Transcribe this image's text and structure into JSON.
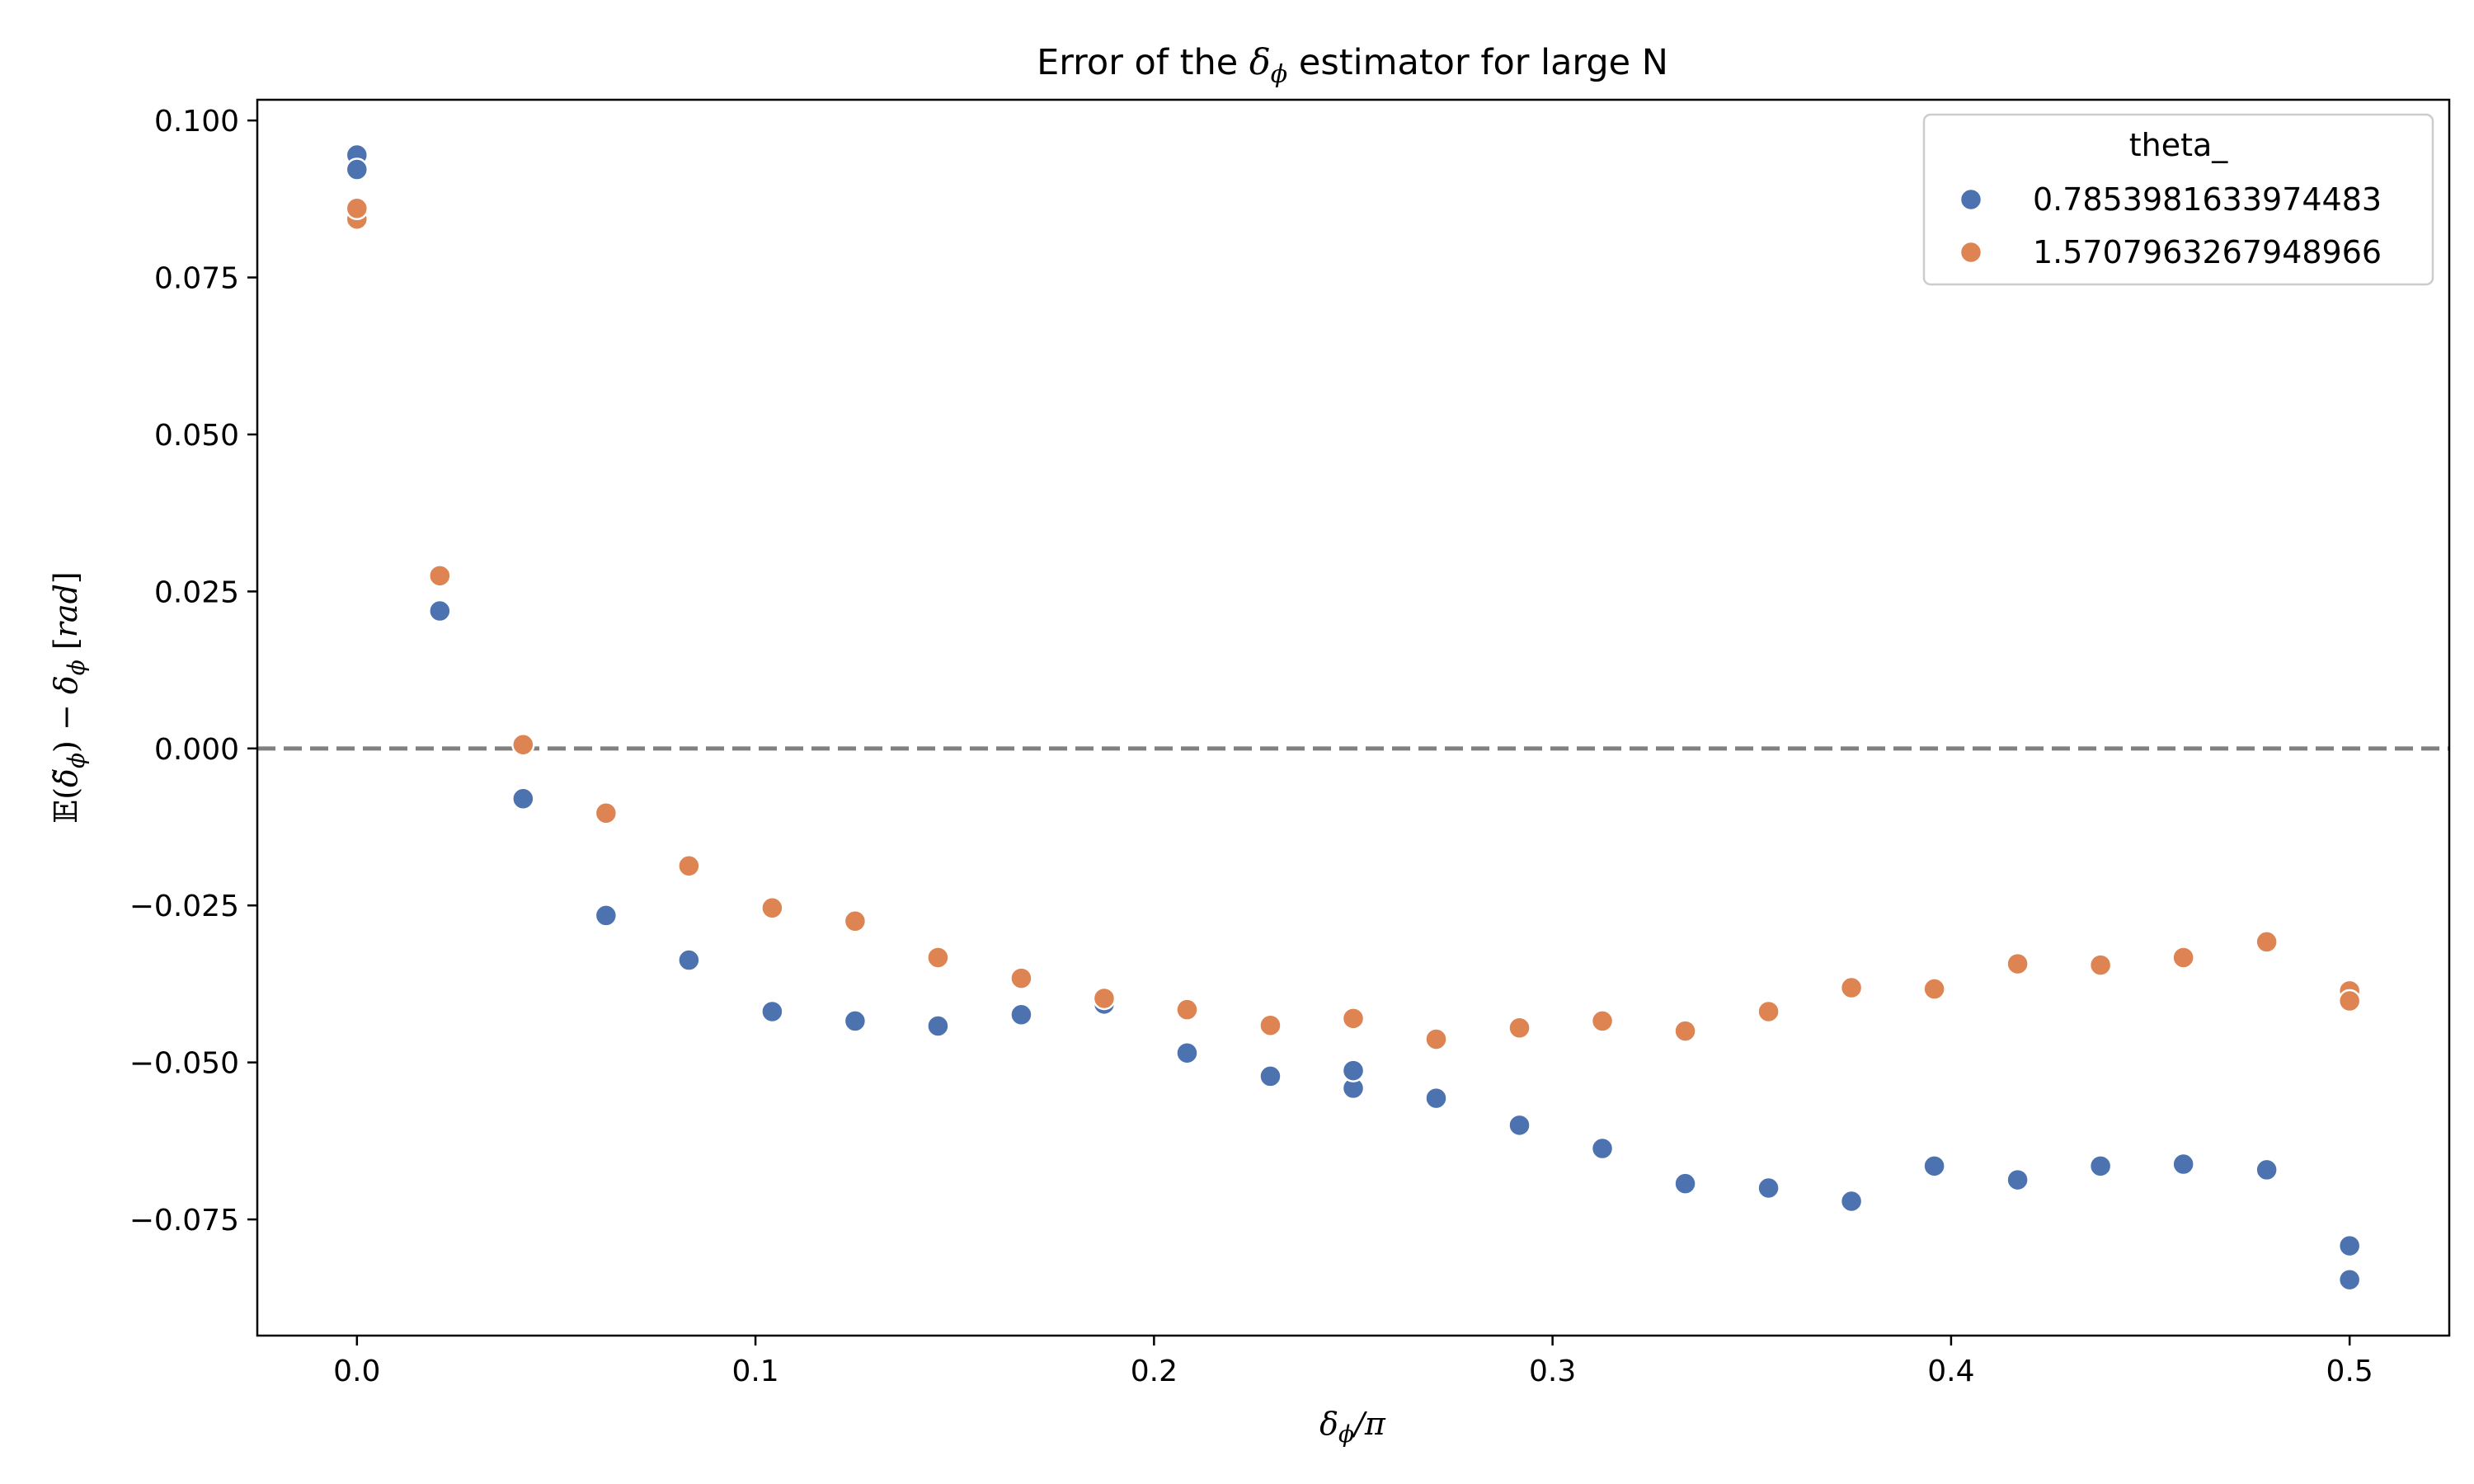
{
  "chart_data": {
    "type": "scatter",
    "title": "Error of the δϕ estimator for large N",
    "xlabel": "δϕ/π",
    "ylabel": "𝔼(δ̃ϕ) − δϕ [rad]",
    "xlim": [
      -0.025,
      0.525
    ],
    "ylim": [
      -0.0935,
      0.1033
    ],
    "xticks": [
      "0.0",
      "0.1",
      "0.2",
      "0.3",
      "0.4",
      "0.5"
    ],
    "xtick_values": [
      0.0,
      0.1,
      0.2,
      0.3,
      0.4,
      0.5
    ],
    "yticks": [
      "−0.075",
      "−0.050",
      "−0.025",
      "0.000",
      "0.025",
      "0.050",
      "0.075",
      "0.100"
    ],
    "ytick_values": [
      -0.075,
      -0.05,
      -0.025,
      0.0,
      0.025,
      0.05,
      0.075,
      0.1
    ],
    "reference_line": {
      "y": 0.0,
      "style": "dashed",
      "color": "#808080"
    },
    "grid": false,
    "legend": {
      "title": "theta_",
      "placement": "top-right"
    },
    "series": [
      {
        "name": "0.7853981633974483",
        "color": "#4c72b0",
        "x": [
          0.0,
          0.0,
          0.0208,
          0.0417,
          0.0625,
          0.0833,
          0.1042,
          0.125,
          0.1458,
          0.1667,
          0.1875,
          0.2083,
          0.2292,
          0.25,
          0.25,
          0.2708,
          0.2917,
          0.3125,
          0.3333,
          0.3542,
          0.375,
          0.3958,
          0.4167,
          0.4375,
          0.4583,
          0.4792,
          0.5,
          0.5
        ],
        "y": [
          0.0945,
          0.0922,
          0.0219,
          -0.008,
          -0.0266,
          -0.0337,
          -0.0419,
          -0.0434,
          -0.0442,
          -0.0424,
          -0.0407,
          -0.0485,
          -0.0522,
          -0.0541,
          -0.0513,
          -0.0557,
          -0.06,
          -0.0637,
          -0.0693,
          -0.07,
          -0.0721,
          -0.0665,
          -0.0687,
          -0.0665,
          -0.0662,
          -0.0671,
          -0.0792,
          -0.0846
        ]
      },
      {
        "name": "1.5707963267948966",
        "color": "#dd8452",
        "x": [
          0.0,
          0.0,
          0.0208,
          0.0417,
          0.0625,
          0.0833,
          0.1042,
          0.125,
          0.1458,
          0.1667,
          0.1875,
          0.2083,
          0.2292,
          0.25,
          0.2708,
          0.2917,
          0.3125,
          0.3333,
          0.3542,
          0.375,
          0.3958,
          0.4167,
          0.4375,
          0.4583,
          0.4792,
          0.5,
          0.5
        ],
        "y": [
          0.0843,
          0.086,
          0.0275,
          0.0006,
          -0.0103,
          -0.0187,
          -0.0254,
          -0.0275,
          -0.0333,
          -0.0366,
          -0.0398,
          -0.0416,
          -0.0441,
          -0.043,
          -0.0463,
          -0.0445,
          -0.0434,
          -0.045,
          -0.0419,
          -0.0381,
          -0.0383,
          -0.0343,
          -0.0345,
          -0.0333,
          -0.0308,
          -0.0386,
          -0.0402
        ]
      }
    ]
  }
}
